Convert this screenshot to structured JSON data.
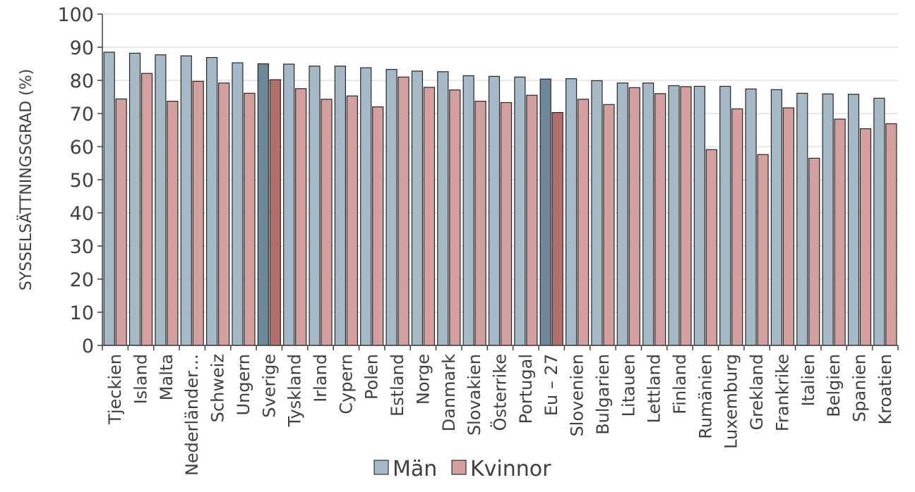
{
  "chart_data": {
    "type": "bar",
    "ylabel": "SYSSELSÄTTNINGSGRAD (%)",
    "ylim": [
      0,
      100
    ],
    "yticks": [
      "0",
      "10",
      "20",
      "30",
      "40",
      "50",
      "60",
      "70",
      "80",
      "90",
      "100"
    ],
    "grid": true,
    "legend_position": "bottom",
    "categories": [
      "Tjeckien",
      "Island",
      "Malta",
      "Nederländer…",
      "Schweiz",
      "Ungern",
      "Sverige",
      "Tyskland",
      "Irland",
      "Cypern",
      "Polen",
      "Estland",
      "Norge",
      "Danmark",
      "Slovakien",
      "Österrike",
      "Portugal",
      "Eu – 27",
      "Slovenien",
      "Bulgarien",
      "Litauen",
      "Lettland",
      "Finland",
      "Rumänien",
      "Luxemburg",
      "Grekland",
      "Frankrike",
      "Italien",
      "Belgien",
      "Spanien",
      "Kroatien"
    ],
    "highlight_categories": [
      "Sverige",
      "Eu – 27"
    ],
    "series": [
      {
        "name": "Män",
        "color": "#a5bac6",
        "highlight_color": "#6f8899",
        "values": [
          88.5,
          88.2,
          87.7,
          87.4,
          86.9,
          85.3,
          85.0,
          84.9,
          84.3,
          84.3,
          83.8,
          83.3,
          82.8,
          82.6,
          81.4,
          81.2,
          81.0,
          80.4,
          80.5,
          79.9,
          79.2,
          79.2,
          78.4,
          78.2,
          78.2,
          77.4,
          77.2,
          76.1,
          75.9,
          75.8,
          74.6
        ]
      },
      {
        "name": "Kvinnor",
        "color": "#d3a09f",
        "highlight_color": "#b46e6c",
        "values": [
          74.4,
          82.1,
          73.7,
          79.7,
          79.2,
          76.1,
          80.2,
          77.5,
          74.3,
          75.3,
          72.0,
          81.0,
          77.9,
          77.1,
          73.7,
          73.3,
          75.5,
          70.3,
          74.3,
          72.7,
          77.8,
          76.0,
          78.1,
          59.1,
          71.4,
          57.6,
          71.7,
          56.5,
          68.3,
          65.4,
          66.9
        ]
      }
    ]
  }
}
